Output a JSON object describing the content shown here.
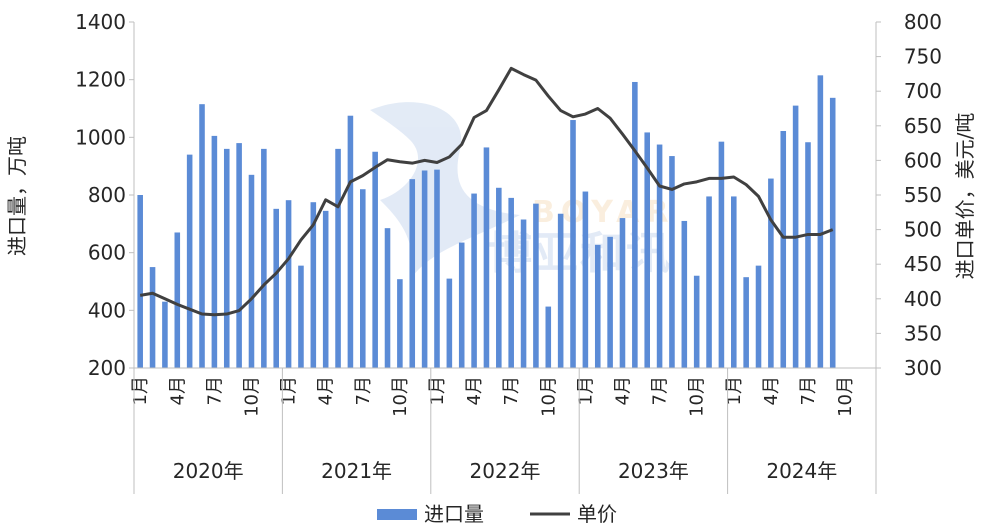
{
  "chart_data": {
    "type": "bar",
    "series": [
      {
        "name": "进口量",
        "kind": "bar",
        "axis": "left",
        "color": "#5b8bd6",
        "values": [
          800,
          550,
          430,
          670,
          940,
          1115,
          1005,
          960,
          980,
          870,
          960,
          752,
          782,
          555,
          775,
          745,
          960,
          1075,
          820,
          950,
          685,
          508,
          855,
          885,
          888,
          510,
          635,
          805,
          965,
          825,
          790,
          715,
          770,
          413,
          735,
          1060,
          812,
          627,
          655,
          720,
          1192,
          1017,
          975,
          935,
          710,
          520,
          795,
          985,
          795,
          515,
          555,
          857,
          1022,
          1110,
          983,
          1215,
          1137
        ]
      },
      {
        "name": "单价",
        "kind": "line",
        "axis": "right",
        "color": "#404040",
        "values": [
          405,
          408,
          400,
          392,
          385,
          378,
          377,
          378,
          383,
          400,
          420,
          437,
          458,
          485,
          507,
          543,
          533,
          569,
          578,
          590,
          601,
          598,
          596,
          600,
          597,
          605,
          623,
          662,
          672,
          702,
          733,
          724,
          716,
          693,
          672,
          663,
          667,
          675,
          661,
          638,
          614,
          589,
          563,
          558,
          566,
          569,
          574,
          574,
          576,
          565,
          548,
          514,
          489,
          489,
          493,
          493,
          500
        ]
      }
    ],
    "x_month_labels": [
      "1月",
      "4月",
      "7月",
      "10月"
    ],
    "x_year_labels": [
      "2020年",
      "2021年",
      "2022年",
      "2023年",
      "2024年"
    ],
    "months_per_year": 12,
    "y_left": {
      "label": "进口量，万吨",
      "min": 200,
      "max": 1400,
      "step": 200,
      "ticks": [
        "200",
        "400",
        "600",
        "800",
        "1000",
        "1200",
        "1400"
      ]
    },
    "y_right": {
      "label": "进口单价，美元/吨",
      "min": 300,
      "max": 800,
      "step": 50,
      "ticks": [
        "300",
        "350",
        "400",
        "450",
        "500",
        "550",
        "600",
        "650",
        "700",
        "750",
        "800"
      ]
    },
    "legend": {
      "position": "bottom",
      "items": [
        {
          "label": "进口量",
          "kind": "bar",
          "color": "#5b8bd6"
        },
        {
          "label": "单价",
          "kind": "line",
          "color": "#404040"
        }
      ]
    },
    "grid": false
  },
  "watermark": {
    "logo_text": "BOYAR",
    "cn_text": "博亚和讯"
  }
}
